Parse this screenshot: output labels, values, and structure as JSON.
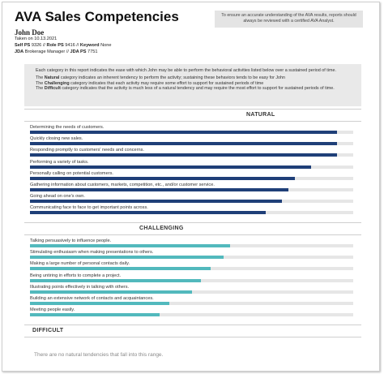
{
  "header": {
    "title": "AVA Sales Competencies",
    "note": "To ensure an accurate understanding of the AVA results, reports should always be reviewed with a certified AVA Analyst.",
    "name": "John Doe",
    "taken": "Taken on 10.13.2021",
    "separator": "//",
    "self_ps_label": "Self PS",
    "self_ps": "9326",
    "role_ps_label": "Role PS",
    "role_ps": "9416",
    "keyword_label": "Keyword",
    "keyword": "None",
    "jda_label": "JDA",
    "jda": "Brokerage Manager",
    "jda_ps_label": "JDA PS",
    "jda_ps": "7751"
  },
  "explanation": {
    "intro": "Each category in this report indicates the ease with which John may be able to perform the behavioral activities listed below over a sustained period of time.",
    "lines": [
      {
        "pre": "The",
        "bold": "Natural",
        "text": "category indicates an inherent tendency to perform the activity; sustaining these behaviors tends to be easy for John"
      },
      {
        "pre": "The",
        "bold": "Challenging",
        "text": "category indicates that each activity may require some effort to support for sustained periods of time"
      },
      {
        "pre": "The",
        "bold": "Difficult",
        "text": "category indicates that the activity is much less of a natural tendency and may require the most effort to support for sustained periods of time."
      }
    ]
  },
  "natural": {
    "title": "NATURAL",
    "color": "#1f3f78",
    "items": [
      {
        "label": "Determining the needs of customers.",
        "value": 95
      },
      {
        "label": "Quickly closing new sales.",
        "value": 95
      },
      {
        "label": "Responding promptly to customers' needs and concerns.",
        "value": 95
      },
      {
        "label": "Performing a variety of tasks.",
        "value": 87
      },
      {
        "label": "Personally calling on potential customers.",
        "value": 82
      },
      {
        "label": "Gathering information about customers, markets, competition, etc., and/or customer service.",
        "value": 80
      },
      {
        "label": "Going ahead on one's own.",
        "value": 78
      },
      {
        "label": "Communicating face to face to get important points across.",
        "value": 73
      }
    ]
  },
  "challenging": {
    "title": "CHALLENGING",
    "color": "#52b9bd",
    "items": [
      {
        "label": "Talking persuasively to influence people.",
        "value": 62
      },
      {
        "label": "Stimulating enthusiasm when making presentations to others.",
        "value": 60
      },
      {
        "label": "Making a large number of personal contacts daily.",
        "value": 56
      },
      {
        "label": "Being untiring in efforts to complete a project.",
        "value": 53
      },
      {
        "label": "Illustrating points effectively in talking with others.",
        "value": 50
      },
      {
        "label": "Building an extensive network of contacts and acquaintances.",
        "value": 43
      },
      {
        "label": "Meeting people easily.",
        "value": 40
      }
    ]
  },
  "difficult": {
    "title": "DIFFICULT",
    "message": "There are no natural tendencies that fall into this range."
  }
}
